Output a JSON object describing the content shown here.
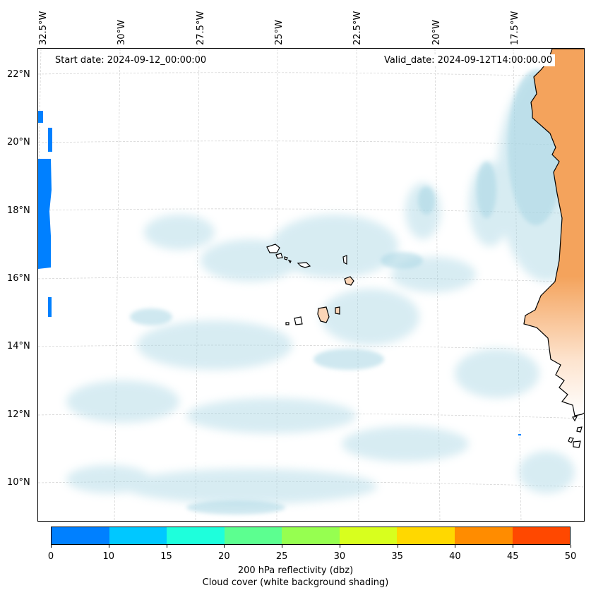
{
  "map": {
    "start_date": "Start date: 2024-09-12_00:00:00",
    "valid_date": "Valid_date: 2024-09-12T14:00:00.00",
    "lon_labels": [
      "32.5°W",
      "30°W",
      "27.5°W",
      "25°W",
      "22.5°W",
      "20°W",
      "17.5°W"
    ],
    "lat_labels": [
      "22°N",
      "20°N",
      "18°N",
      "16°N",
      "14°N",
      "12°N",
      "10°N"
    ],
    "colors": {
      "land": "#f4a35c",
      "land_light": "#fbd6b8",
      "cloud": "#a8d6e4",
      "reflectivity_low": "#0080ff",
      "grid": "#cccccc"
    }
  },
  "colorbar": {
    "ticks": [
      "0",
      "10",
      "15",
      "20",
      "25",
      "30",
      "35",
      "40",
      "45",
      "50"
    ],
    "colors": [
      "#0080ff",
      "#00c8ff",
      "#1effdc",
      "#5cff90",
      "#96ff50",
      "#d8ff1e",
      "#ffd800",
      "#ff8c00",
      "#ff4800"
    ],
    "label": "200 hPa reflectivity (dbz)",
    "sublabel": "Cloud cover (white background shading)"
  }
}
